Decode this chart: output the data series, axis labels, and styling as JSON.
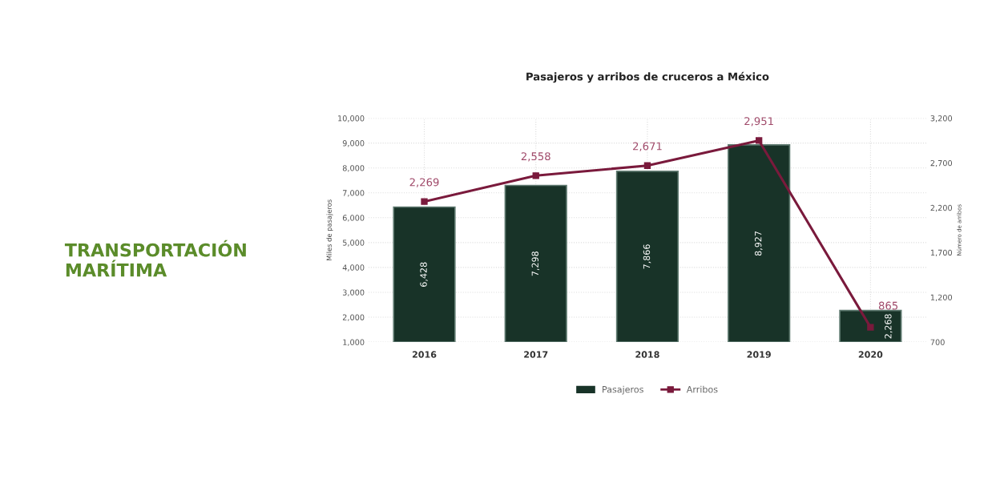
{
  "chart_data": {
    "type": "bar",
    "title": "Pasajeros y arribos de cruceros a México",
    "ylabel": "Miles de pasajeros",
    "y2label": "Número de arribos",
    "annotations": [
      "TRANSPORTACIÓN MARÍTIMA"
    ],
    "categories": [
      "2016",
      "2017",
      "2018",
      "2019",
      "2020"
    ],
    "series": [
      {
        "name": "Pasajeros",
        "color": "#183328",
        "values": [
          6428,
          7298,
          7866,
          8927,
          2268
        ],
        "value_labels": [
          "6,428",
          "7,298",
          "7,866",
          "8,927",
          "2,268"
        ]
      },
      {
        "name": "Arribos",
        "type": "line",
        "axis": "y2",
        "color": "#7a1a3c",
        "marker": "square",
        "values": [
          2269,
          2558,
          2671,
          2951,
          865
        ],
        "value_labels": [
          "2,269",
          "2,558",
          "2,671",
          "2,951",
          "865"
        ]
      }
    ],
    "ylim": [
      1000,
      10000
    ],
    "yticks": [
      {
        "value": 1000,
        "label": "1,000"
      },
      {
        "value": 2000,
        "label": "2,000"
      },
      {
        "value": 3000,
        "label": "3,000"
      },
      {
        "value": 4000,
        "label": "4,000"
      },
      {
        "value": 5000,
        "label": "5,000"
      },
      {
        "value": 6000,
        "label": "6,000"
      },
      {
        "value": 7000,
        "label": "7,000"
      },
      {
        "value": 8000,
        "label": "8,000"
      },
      {
        "value": 9000,
        "label": "9,000"
      },
      {
        "value": 10000,
        "label": "10,000"
      }
    ],
    "y2lim": [
      700,
      3200
    ],
    "y2ticks": [
      700,
      {
        "value": 1200,
        "label": "1,200"
      },
      {
        "value": 1700,
        "label": "1,700"
      },
      {
        "value": 2200,
        "label": "2,200"
      },
      {
        "value": 2700,
        "label": "2,700"
      },
      {
        "value": 3200,
        "label": "3,200"
      }
    ],
    "grid": true,
    "legend": "bottom"
  }
}
